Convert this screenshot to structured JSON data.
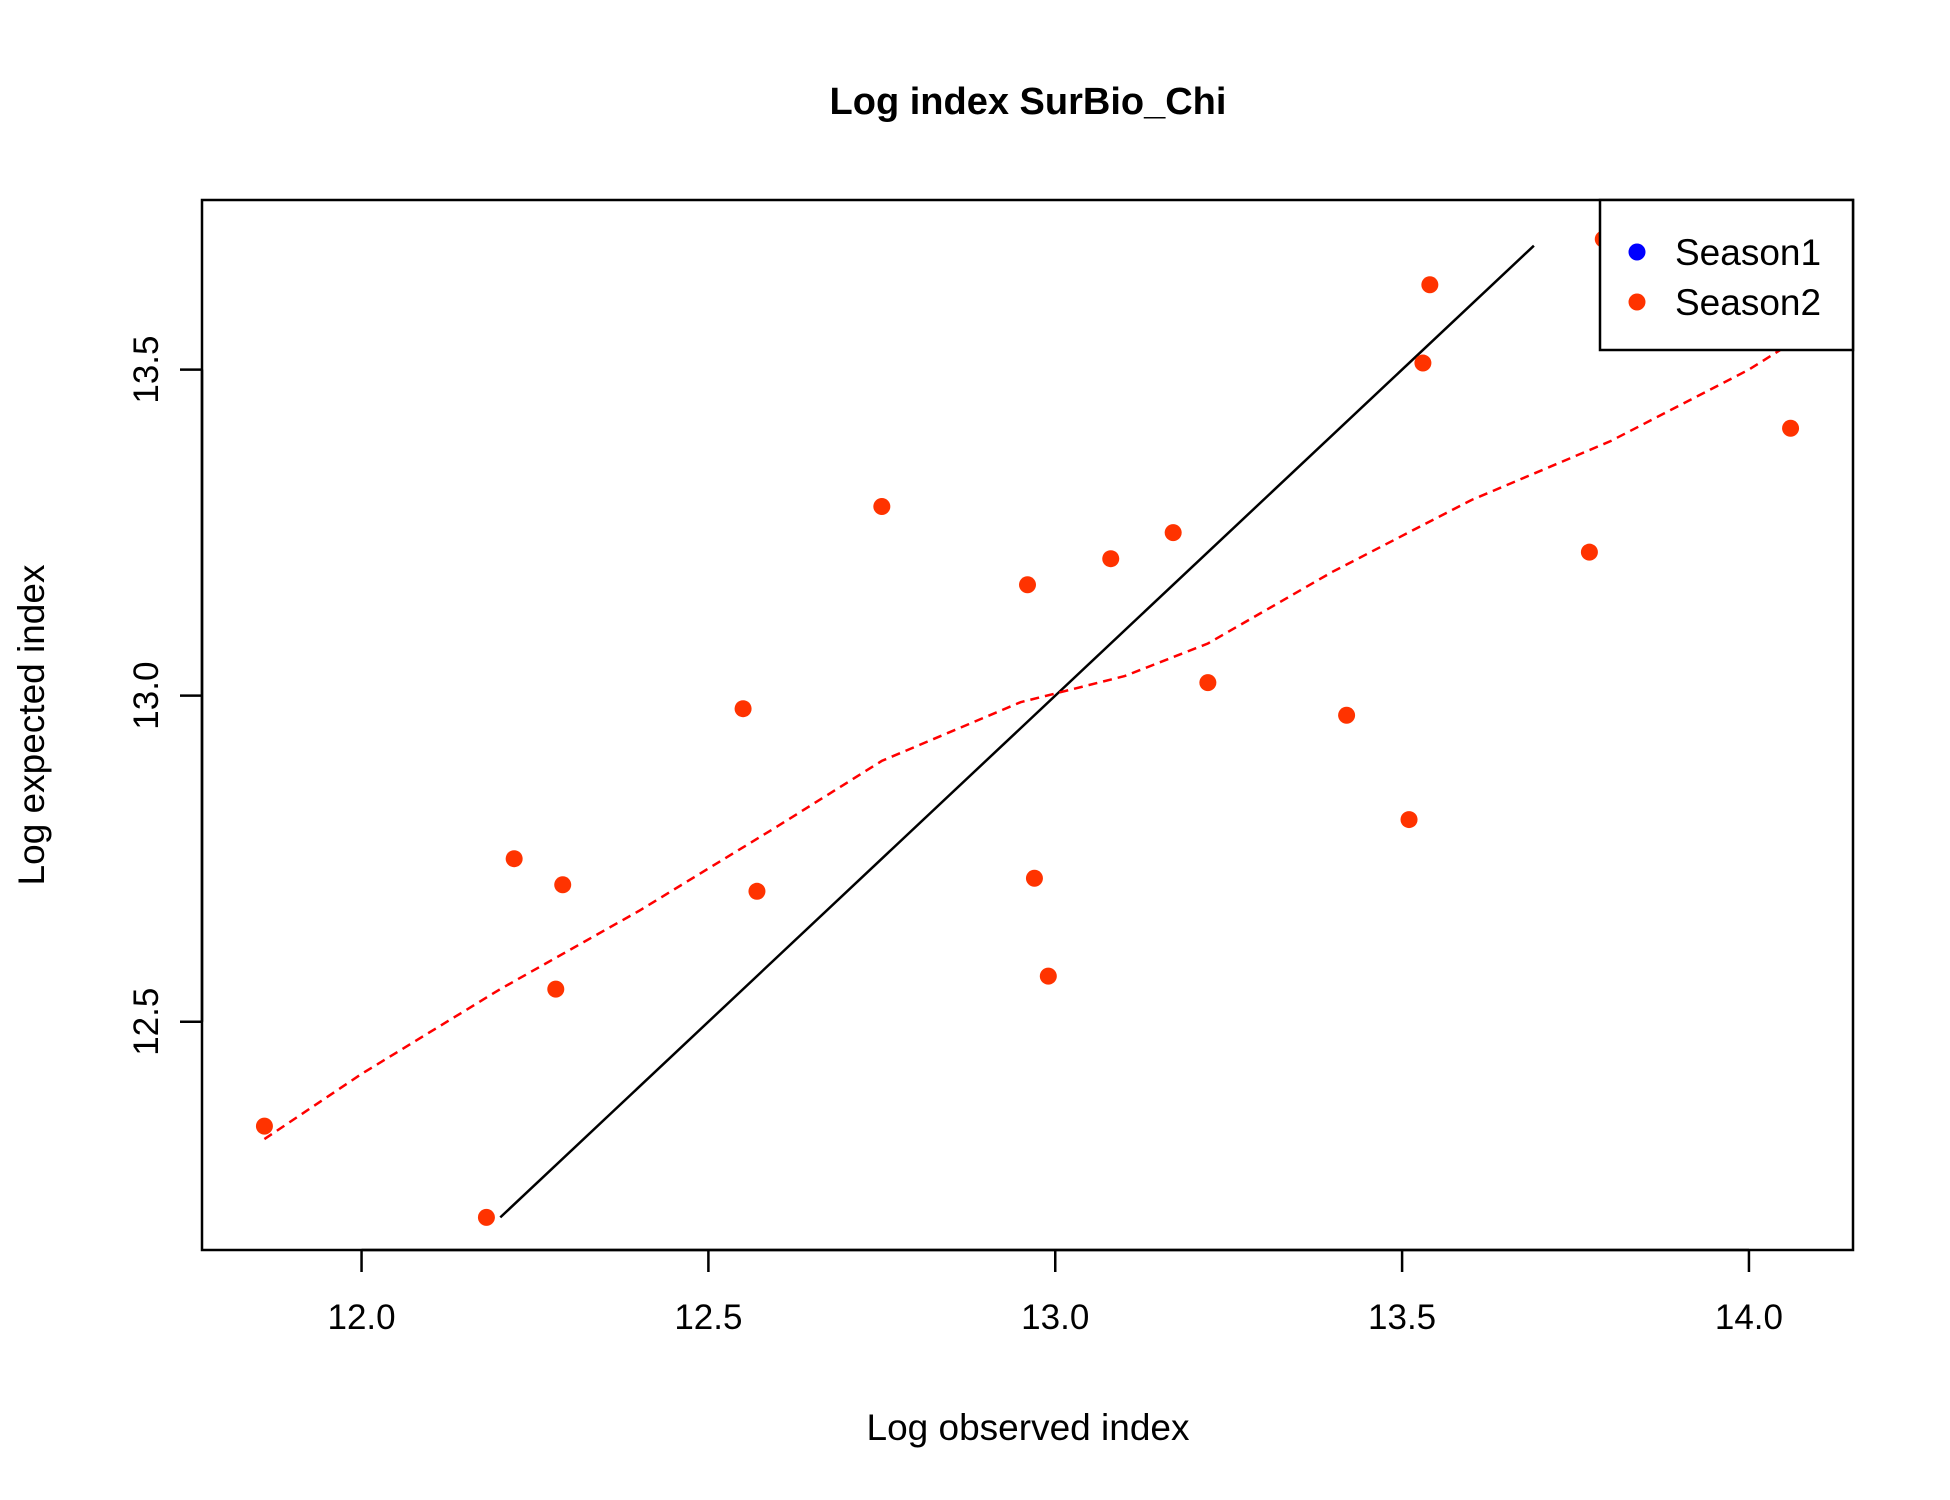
{
  "chart_data": {
    "type": "scatter",
    "title": "Log index SurBio_Chi",
    "xlabel": "Log observed index",
    "ylabel": "Log expected index",
    "xlim": [
      11.77,
      14.15
    ],
    "ylim": [
      12.15,
      13.76
    ],
    "x_ticks": [
      12.0,
      12.5,
      13.0,
      13.5,
      14.0
    ],
    "x_tick_labels": [
      "12.0",
      "12.5",
      "13.0",
      "13.5",
      "14.0"
    ],
    "y_ticks": [
      12.5,
      13.0,
      13.5
    ],
    "y_tick_labels": [
      "12.5",
      "13.0",
      "13.5"
    ],
    "grid": false,
    "legend_position": "top-right",
    "series": [
      {
        "name": "Season1",
        "color": "#0000ff",
        "points": []
      },
      {
        "name": "Season2",
        "color": "#ff3300",
        "points": [
          {
            "x": 11.86,
            "y": 12.34
          },
          {
            "x": 12.18,
            "y": 12.2
          },
          {
            "x": 12.22,
            "y": 12.75
          },
          {
            "x": 12.29,
            "y": 12.71
          },
          {
            "x": 12.28,
            "y": 12.55
          },
          {
            "x": 12.55,
            "y": 12.98
          },
          {
            "x": 12.57,
            "y": 12.7
          },
          {
            "x": 12.75,
            "y": 13.29
          },
          {
            "x": 12.96,
            "y": 13.17
          },
          {
            "x": 12.97,
            "y": 12.72
          },
          {
            "x": 12.99,
            "y": 12.57
          },
          {
            "x": 13.08,
            "y": 13.21
          },
          {
            "x": 13.17,
            "y": 13.25
          },
          {
            "x": 13.22,
            "y": 13.02
          },
          {
            "x": 13.42,
            "y": 12.97
          },
          {
            "x": 13.51,
            "y": 12.81
          },
          {
            "x": 13.53,
            "y": 13.51
          },
          {
            "x": 13.54,
            "y": 13.63
          },
          {
            "x": 13.77,
            "y": 13.22
          },
          {
            "x": 13.79,
            "y": 13.7
          },
          {
            "x": 14.06,
            "y": 13.41
          }
        ]
      }
    ],
    "reference_line": {
      "type": "identity",
      "color": "#000000",
      "x": [
        12.2,
        13.69
      ],
      "y": [
        12.2,
        13.69
      ]
    },
    "smooth_line": {
      "color": "#ff0000",
      "dashed": true,
      "points": [
        {
          "x": 11.86,
          "y": 12.32
        },
        {
          "x": 12.0,
          "y": 12.42
        },
        {
          "x": 12.2,
          "y": 12.55
        },
        {
          "x": 12.4,
          "y": 12.67
        },
        {
          "x": 12.6,
          "y": 12.8
        },
        {
          "x": 12.75,
          "y": 12.9
        },
        {
          "x": 12.95,
          "y": 12.99
        },
        {
          "x": 13.1,
          "y": 13.03
        },
        {
          "x": 13.22,
          "y": 13.08
        },
        {
          "x": 13.4,
          "y": 13.19
        },
        {
          "x": 13.6,
          "y": 13.3
        },
        {
          "x": 13.8,
          "y": 13.39
        },
        {
          "x": 14.0,
          "y": 13.5
        },
        {
          "x": 14.06,
          "y": 13.54
        }
      ]
    }
  }
}
